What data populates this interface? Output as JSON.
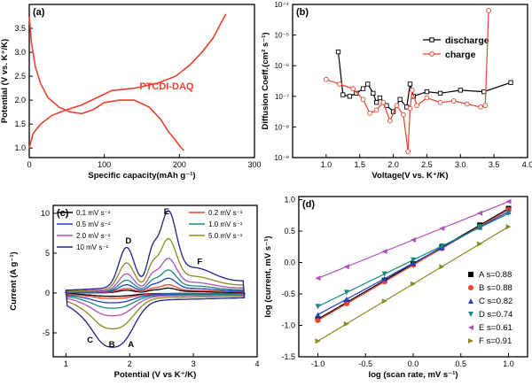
{
  "chart_data": [
    {
      "panel": "(a)",
      "type": "line",
      "xlabel": "Specific capacity(mAh g⁻¹)",
      "ylabel": "Potential (V vs. K⁺/K)",
      "xlim": [
        0,
        300
      ],
      "ylim": [
        0.8,
        4.0
      ],
      "xticks": [
        "0",
        "100",
        "200",
        "300"
      ],
      "yticks": [
        "1.0",
        "1.5",
        "2.0",
        "2.5",
        "3.0",
        "3.5"
      ],
      "annotation": "PTCDI-DAQ",
      "color": "#e8412c",
      "series": [
        {
          "x": [
            0,
            3,
            8,
            15,
            25,
            40,
            55,
            70,
            85,
            100,
            120,
            140,
            160,
            175,
            185,
            193,
            200,
            206
          ],
          "y": [
            3.75,
            3.2,
            2.7,
            2.35,
            2.05,
            1.85,
            1.75,
            1.72,
            1.8,
            1.95,
            2.0,
            2.0,
            1.85,
            1.6,
            1.35,
            1.2,
            1.05,
            0.95
          ]
        },
        {
          "x": [
            0,
            5,
            15,
            30,
            50,
            70,
            90,
            110,
            140,
            170,
            195,
            215,
            230,
            245,
            255,
            262
          ],
          "y": [
            1.0,
            1.3,
            1.5,
            1.68,
            1.8,
            1.9,
            2.05,
            2.2,
            2.25,
            2.35,
            2.5,
            2.75,
            3.0,
            3.3,
            3.6,
            3.8
          ]
        }
      ]
    },
    {
      "panel": "(b)",
      "type": "line",
      "xlabel": "Voltage(V vs. K⁺/K)",
      "ylabel": "Diffusion Coeff.(cm² s⁻¹)",
      "xlim": [
        0.5,
        4.0
      ],
      "ylim_log10": [
        -9,
        -4
      ],
      "scale": "log",
      "xticks": [
        "1.0",
        "1.5",
        "2.0",
        "2.5",
        "3.0",
        "3.5",
        "4.0"
      ],
      "yticks": [
        "10⁻⁹",
        "10⁻⁸",
        "10⁻⁷",
        "10⁻⁶",
        "10⁻⁵",
        "10⁻⁴"
      ],
      "legend": "top-right",
      "series": [
        {
          "name": "discharge",
          "color": "#000000",
          "x": [
            1.18,
            1.25,
            1.35,
            1.45,
            1.55,
            1.62,
            1.7,
            1.75,
            1.8,
            1.9,
            2.0,
            2.1,
            2.2,
            2.25,
            2.3,
            2.5,
            2.7,
            3.0,
            3.35,
            3.75
          ],
          "log10": [
            -5.55,
            -6.95,
            -7.0,
            -6.9,
            -6.75,
            -6.6,
            -6.9,
            -7.2,
            -7.05,
            -7.3,
            -7.5,
            -7.1,
            -7.35,
            -6.6,
            -7.0,
            -6.85,
            -6.9,
            -6.8,
            -6.85,
            -6.55
          ]
        },
        {
          "name": "charge",
          "color": "#e8412c",
          "x": [
            1.0,
            1.2,
            1.4,
            1.55,
            1.65,
            1.75,
            1.85,
            1.95,
            2.05,
            2.15,
            2.22,
            2.25,
            2.28,
            2.35,
            2.5,
            2.7,
            2.9,
            3.1,
            3.3,
            3.37,
            3.42
          ],
          "log10": [
            -6.45,
            -6.6,
            -6.75,
            -7.1,
            -7.55,
            -7.45,
            -7.2,
            -7.8,
            -7.3,
            -7.6,
            -8.8,
            -7.4,
            -6.8,
            -7.3,
            -7.05,
            -7.2,
            -7.15,
            -7.25,
            -7.35,
            -7.3,
            -4.2
          ]
        }
      ]
    },
    {
      "panel": "(c)",
      "type": "line",
      "xlabel": "Potential (V vs K⁺/K)",
      "ylabel": "Current (A g⁻¹)",
      "xlim": [
        0.8,
        4.0
      ],
      "ylim": [
        -8,
        11
      ],
      "xticks": [
        "1",
        "2",
        "3",
        "4"
      ],
      "yticks": [
        "-5",
        "0",
        "5",
        "10"
      ],
      "peak_labels": [
        "A",
        "B",
        "C",
        "D",
        "E",
        "F"
      ],
      "series": [
        {
          "name": "0.1 mV s⁻¹",
          "color": "#000000",
          "scale": 0.06
        },
        {
          "name": "0.2 mV s⁻¹",
          "color": "#e8412c",
          "scale": 0.1
        },
        {
          "name": "0.5 mV s⁻¹",
          "color": "#2040c0",
          "scale": 0.18
        },
        {
          "name": "1.0 mV s⁻¹",
          "color": "#1a8a80",
          "scale": 0.28
        },
        {
          "name": "2.0 mV s⁻¹",
          "color": "#b050b8",
          "scale": 0.42
        },
        {
          "name": "5.0 mV s⁻¹",
          "color": "#8a8a20",
          "scale": 0.66
        },
        {
          "name": "10  mV s⁻¹",
          "color": "#20208a",
          "scale": 1.0
        }
      ]
    },
    {
      "panel": "(d)",
      "type": "scatter",
      "xlabel": "log (scan rate, mV s⁻¹)",
      "ylabel": "log (current, mV s⁻¹)",
      "xlim": [
        -1.2,
        1.2
      ],
      "ylim": [
        -1.5,
        1.05
      ],
      "xticks": [
        "-1.0",
        "-0.5",
        "0.0",
        "0.5",
        "1.0"
      ],
      "yticks": [
        "-1.5",
        "-1.0",
        "-0.5",
        "0.0",
        "0.5",
        "1.0"
      ],
      "x": [
        -1.0,
        -0.699,
        -0.301,
        0.0,
        0.301,
        0.699,
        1.0
      ],
      "legend": "bottom-right",
      "series": [
        {
          "name": "A s=0.88",
          "color": "#000000",
          "marker": "square",
          "b": 0.88,
          "intercept": -0.02
        },
        {
          "name": "B s=0.88",
          "color": "#e8412c",
          "marker": "circle",
          "b": 0.88,
          "intercept": -0.04
        },
        {
          "name": "C s=0.82",
          "color": "#2040c0",
          "marker": "triangle-up",
          "b": 0.82,
          "intercept": -0.01
        },
        {
          "name": "D s=0.74",
          "color": "#1a8a80",
          "marker": "triangle-down",
          "b": 0.74,
          "intercept": 0.04
        },
        {
          "name": "E s=0.61",
          "color": "#b050b8",
          "marker": "triangle-left",
          "b": 0.61,
          "intercept": 0.36
        },
        {
          "name": "F s=0.91",
          "color": "#8a8a20",
          "marker": "triangle-right",
          "b": 0.91,
          "intercept": -0.34
        }
      ]
    }
  ]
}
